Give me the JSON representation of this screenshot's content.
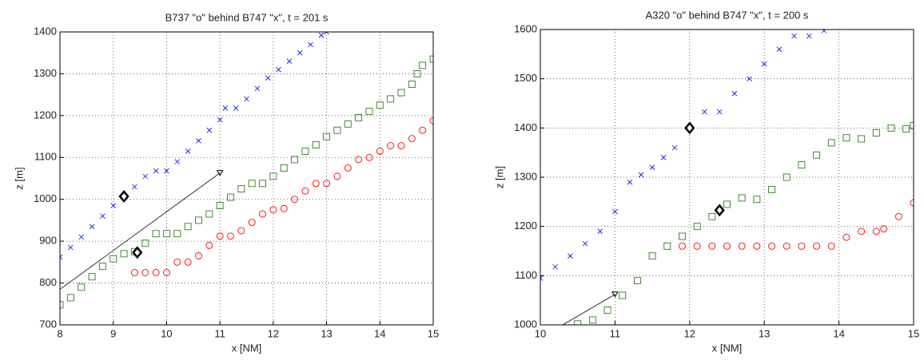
{
  "chart_data": [
    {
      "type": "scatter",
      "title": "B737 \"o\" behind B747 \"x\", t = 201 s",
      "xlabel": "x [NM]",
      "ylabel": "z [m]",
      "xlim": [
        8,
        15
      ],
      "ylim": [
        700,
        1400
      ],
      "xticks": [
        8,
        9,
        10,
        11,
        12,
        13,
        14,
        15
      ],
      "yticks": [
        700,
        800,
        900,
        1000,
        1100,
        1200,
        1300,
        1400
      ],
      "grid": true,
      "series": [
        {
          "marker": "x",
          "color": "#0000ff",
          "x": [
            8.0,
            8.2,
            8.4,
            8.6,
            8.8,
            9.0,
            9.2,
            9.4,
            9.6,
            9.8,
            10.0,
            10.2,
            10.4,
            10.6,
            10.8,
            11.0,
            11.1,
            11.3,
            11.5,
            11.7,
            11.9,
            12.1,
            12.3,
            12.5,
            12.7,
            12.9,
            13.0
          ],
          "values": [
            862,
            885,
            910,
            935,
            960,
            985,
            1005,
            1030,
            1055,
            1068,
            1068,
            1090,
            1115,
            1140,
            1165,
            1190,
            1218,
            1218,
            1240,
            1265,
            1290,
            1310,
            1330,
            1350,
            1370,
            1392,
            1400
          ]
        },
        {
          "marker": "s",
          "color": "#2e7d1e",
          "x": [
            8.0,
            8.2,
            8.4,
            8.6,
            8.8,
            9.0,
            9.2,
            9.4,
            9.6,
            9.8,
            10.0,
            10.2,
            10.4,
            10.6,
            10.8,
            11.0,
            11.2,
            11.4,
            11.6,
            11.8,
            12.0,
            12.2,
            12.4,
            12.6,
            12.8,
            13.0,
            13.2,
            13.4,
            13.6,
            13.8,
            14.0,
            14.2,
            14.4,
            14.6,
            14.7,
            14.8,
            15.0
          ],
          "values": [
            748,
            765,
            790,
            815,
            840,
            858,
            870,
            875,
            895,
            918,
            918,
            918,
            935,
            950,
            965,
            985,
            1005,
            1025,
            1038,
            1038,
            1055,
            1075,
            1095,
            1115,
            1130,
            1150,
            1165,
            1180,
            1195,
            1210,
            1225,
            1240,
            1255,
            1275,
            1300,
            1320,
            1335
          ]
        },
        {
          "marker": "o",
          "color": "#ff0000",
          "x": [
            9.4,
            9.6,
            9.8,
            10.0,
            10.2,
            10.4,
            10.6,
            10.8,
            11.0,
            11.2,
            11.4,
            11.6,
            11.8,
            12.0,
            12.2,
            12.4,
            12.6,
            12.8,
            13.0,
            13.2,
            13.4,
            13.6,
            13.8,
            14.0,
            14.2,
            14.4,
            14.6,
            14.8,
            15.0
          ],
          "values": [
            825,
            825,
            825,
            825,
            850,
            850,
            865,
            890,
            912,
            912,
            925,
            945,
            965,
            975,
            978,
            1000,
            1020,
            1038,
            1038,
            1055,
            1075,
            1095,
            1100,
            1115,
            1128,
            1128,
            1145,
            1165,
            1188
          ]
        },
        {
          "marker": "line",
          "end_marker": "v",
          "color": "#000000",
          "x": [
            8,
            11
          ],
          "values": [
            785,
            1063
          ]
        },
        {
          "marker": "d",
          "color": "#000000",
          "x": [
            9.2,
            9.45
          ],
          "values": [
            1007,
            873
          ]
        }
      ]
    },
    {
      "type": "scatter",
      "title": "A320 \"o\" behind B747 \"x\", t = 200 s",
      "xlabel": "x [NM]",
      "ylabel": "z [m]",
      "xlim": [
        10,
        15
      ],
      "ylim": [
        1000,
        1600
      ],
      "xticks": [
        10,
        11,
        12,
        13,
        14,
        15
      ],
      "yticks": [
        1000,
        1100,
        1200,
        1300,
        1400,
        1500,
        1600
      ],
      "grid": true,
      "series": [
        {
          "marker": "x",
          "color": "#0000ff",
          "x": [
            10.0,
            10.2,
            10.4,
            10.6,
            10.8,
            11.0,
            11.2,
            11.35,
            11.5,
            11.65,
            11.8,
            12.0,
            12.2,
            12.4,
            12.6,
            12.8,
            13.0,
            13.2,
            13.4,
            13.6,
            13.8
          ],
          "values": [
            1095,
            1118,
            1140,
            1165,
            1190,
            1230,
            1290,
            1305,
            1320,
            1340,
            1360,
            1400,
            1433,
            1433,
            1470,
            1500,
            1530,
            1560,
            1587,
            1587,
            1598
          ]
        },
        {
          "marker": "s",
          "color": "#2e7d1e",
          "x": [
            10.5,
            10.7,
            10.9,
            11.1,
            11.3,
            11.5,
            11.7,
            11.9,
            12.1,
            12.3,
            12.5,
            12.7,
            12.9,
            13.1,
            13.3,
            13.5,
            13.7,
            13.9,
            14.1,
            14.3,
            14.5,
            14.7,
            14.9,
            15.0
          ],
          "values": [
            1002,
            1010,
            1030,
            1060,
            1090,
            1140,
            1160,
            1180,
            1200,
            1220,
            1245,
            1258,
            1255,
            1275,
            1300,
            1325,
            1345,
            1370,
            1380,
            1378,
            1390,
            1400,
            1398,
            1405
          ]
        },
        {
          "marker": "o",
          "color": "#ff0000",
          "x": [
            11.9,
            12.1,
            12.3,
            12.5,
            12.7,
            12.9,
            13.1,
            13.3,
            13.5,
            13.7,
            13.9,
            14.1,
            14.3,
            14.5,
            14.6,
            14.8,
            15.0
          ],
          "values": [
            1160,
            1160,
            1160,
            1160,
            1160,
            1160,
            1160,
            1160,
            1160,
            1160,
            1160,
            1178,
            1190,
            1190,
            1195,
            1220,
            1248
          ]
        },
        {
          "marker": "line",
          "end_marker": "v",
          "color": "#000000",
          "x": [
            10.3,
            11
          ],
          "values": [
            1000,
            1062
          ]
        },
        {
          "marker": "d",
          "color": "#000000",
          "x": [
            12,
            12.4
          ],
          "values": [
            1400,
            1233
          ]
        }
      ]
    }
  ]
}
